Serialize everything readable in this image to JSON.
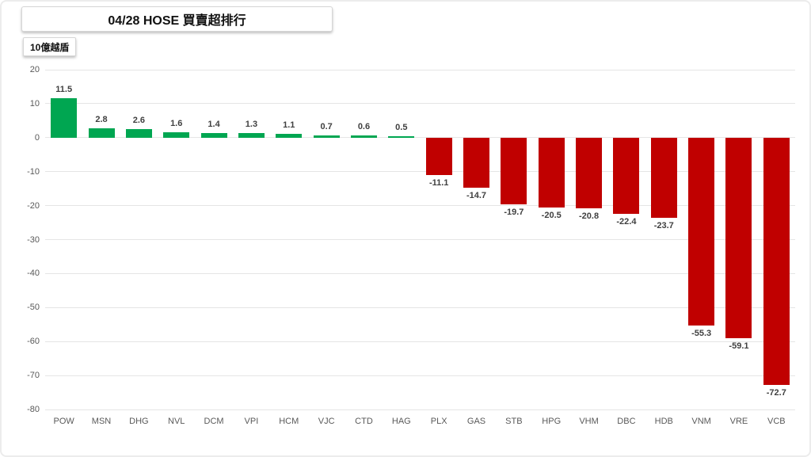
{
  "header": {
    "title": "04/28 HOSE 買賣超排行",
    "unit_label": "10億越盾"
  },
  "colors": {
    "positive_bar": "#00A651",
    "negative_bar": "#C00000",
    "gridline": "#E5E5E5",
    "axis_text": "#595959",
    "value_label_text": "#404040"
  },
  "chart_data": {
    "type": "bar",
    "title": "04/28 HOSE 買賣超排行",
    "xlabel": "",
    "ylabel": "10億越盾",
    "categories": [
      "POW",
      "MSN",
      "DHG",
      "NVL",
      "DCM",
      "VPI",
      "HCM",
      "VJC",
      "CTD",
      "HAG",
      "PLX",
      "GAS",
      "STB",
      "HPG",
      "VHM",
      "DBC",
      "HDB",
      "VNM",
      "VRE",
      "VCB"
    ],
    "values": [
      11.5,
      2.8,
      2.6,
      1.6,
      1.4,
      1.3,
      1.1,
      0.7,
      0.6,
      0.5,
      -11.1,
      -14.7,
      -19.7,
      -20.5,
      -20.8,
      -22.4,
      -23.7,
      -55.3,
      -59.1,
      -72.7
    ],
    "ylim": [
      -80,
      20
    ],
    "yticks": [
      20,
      10,
      0,
      -10,
      -20,
      -30,
      -40,
      -50,
      -60,
      -70,
      -80
    ],
    "grid": true,
    "legend": false,
    "value_labels_shown": true
  }
}
